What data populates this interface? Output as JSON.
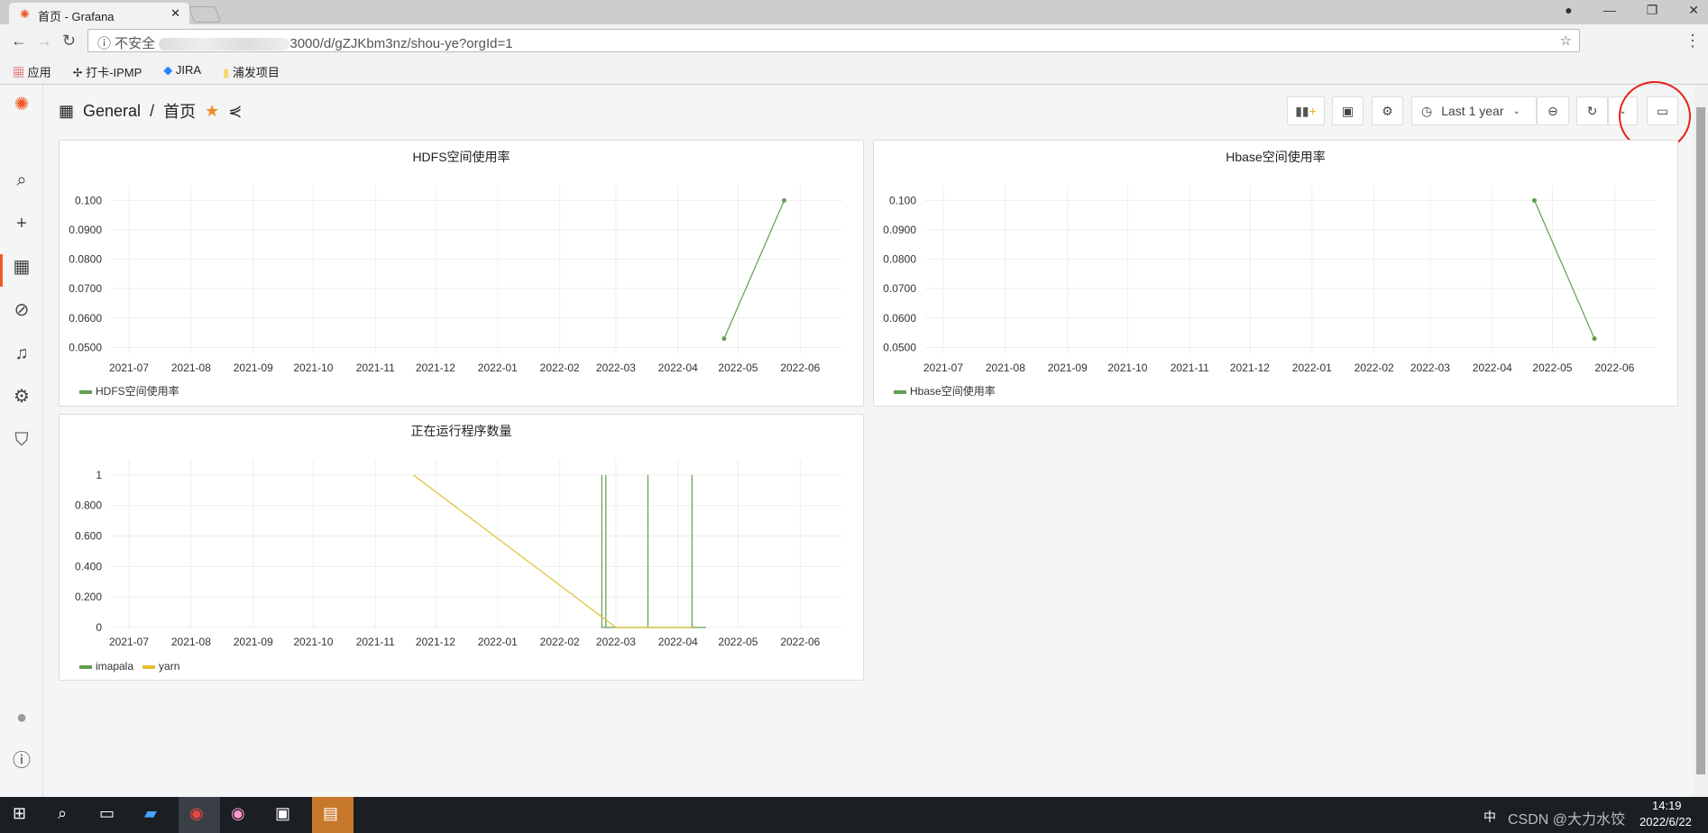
{
  "browser": {
    "tab_title": "首页 - Grafana",
    "url_suffix": "3000/d/gZJKbm3nz/shou-ye?orgId=1",
    "insecure_label": "不安全",
    "bookmarks": [
      "应用",
      "打卡-IPMP",
      "JIRA",
      "浦发项目"
    ]
  },
  "sidebar": {
    "items": [
      "grafana-logo",
      "search-icon",
      "plus-icon",
      "dashboards-icon",
      "explore-icon",
      "alert-bell-icon",
      "gear-icon",
      "shield-icon",
      "avatar",
      "help-icon"
    ],
    "active": "dashboards-icon",
    "accent": "#f05a28"
  },
  "header": {
    "folder": "General",
    "separator": "/",
    "title": "首页",
    "time_range": "Last 1 year"
  },
  "chart_data": [
    {
      "type": "line",
      "title": "HDFS空间使用率",
      "xlim": [
        "2021-06-22",
        "2022-06-22"
      ],
      "xticks": [
        "2021-07",
        "2021-08",
        "2021-09",
        "2021-10",
        "2021-11",
        "2021-12",
        "2022-01",
        "2022-02",
        "2022-03",
        "2022-04",
        "2022-05",
        "2022-06"
      ],
      "yticks": [
        "0.0500",
        "0.0600",
        "0.0700",
        "0.0800",
        "0.0900",
        "0.100"
      ],
      "ylim": [
        0.048,
        0.105
      ],
      "grid": true,
      "legend": "bottom-left",
      "series": [
        {
          "name": "HDFS空间使用率",
          "color": "#629e51",
          "points": true,
          "x": [
            "2022-04-24",
            "2022-05-24"
          ],
          "y": [
            0.053,
            0.1
          ]
        }
      ]
    },
    {
      "type": "line",
      "title": "Hbase空间使用率",
      "xlim": [
        "2021-06-22",
        "2022-06-22"
      ],
      "xticks": [
        "2021-07",
        "2021-08",
        "2021-09",
        "2021-10",
        "2021-11",
        "2021-12",
        "2022-01",
        "2022-02",
        "2022-03",
        "2022-04",
        "2022-05",
        "2022-06"
      ],
      "yticks": [
        "0.0500",
        "0.0600",
        "0.0700",
        "0.0800",
        "0.0900",
        "0.100"
      ],
      "ylim": [
        0.048,
        0.105
      ],
      "grid": true,
      "legend": "bottom-left",
      "series": [
        {
          "name": "Hbase空间使用率",
          "color": "#629e51",
          "points": true,
          "x": [
            "2022-04-22",
            "2022-05-22"
          ],
          "y": [
            0.1,
            0.053
          ]
        }
      ]
    },
    {
      "type": "line",
      "title": "正在运行程序数量",
      "xlim": [
        "2021-06-22",
        "2022-06-22"
      ],
      "xticks": [
        "2021-07",
        "2021-08",
        "2021-09",
        "2021-10",
        "2021-11",
        "2021-12",
        "2022-01",
        "2022-02",
        "2022-03",
        "2022-04",
        "2022-05",
        "2022-06"
      ],
      "yticks": [
        "0",
        "0.200",
        "0.400",
        "0.600",
        "0.800",
        "1"
      ],
      "ylim": [
        0,
        1.1
      ],
      "grid": true,
      "legend": "bottom-left",
      "series": [
        {
          "name": "imapala",
          "color": "#629e51",
          "points": false,
          "x": [
            "2022-02-22",
            "2022-02-22",
            "2022-02-22",
            "2022-02-24",
            "2022-02-24",
            "2022-02-24",
            "2022-03-17",
            "2022-03-17",
            "2022-03-17",
            "2022-04-08",
            "2022-04-08",
            "2022-04-08",
            "2022-04-15"
          ],
          "y": [
            0,
            1,
            0,
            0,
            1,
            0,
            0,
            1,
            0,
            0,
            1,
            0,
            0
          ]
        },
        {
          "name": "yarn",
          "color": "#e0c030",
          "points": false,
          "x": [
            "2021-11-20",
            "2022-03-01",
            "2022-04-08"
          ],
          "y": [
            1,
            0,
            0
          ]
        }
      ]
    }
  ],
  "taskbar": {
    "time": "14:19",
    "date": "2022/6/22",
    "ime": "中",
    "watermark": "CSDN @大力水饺"
  }
}
